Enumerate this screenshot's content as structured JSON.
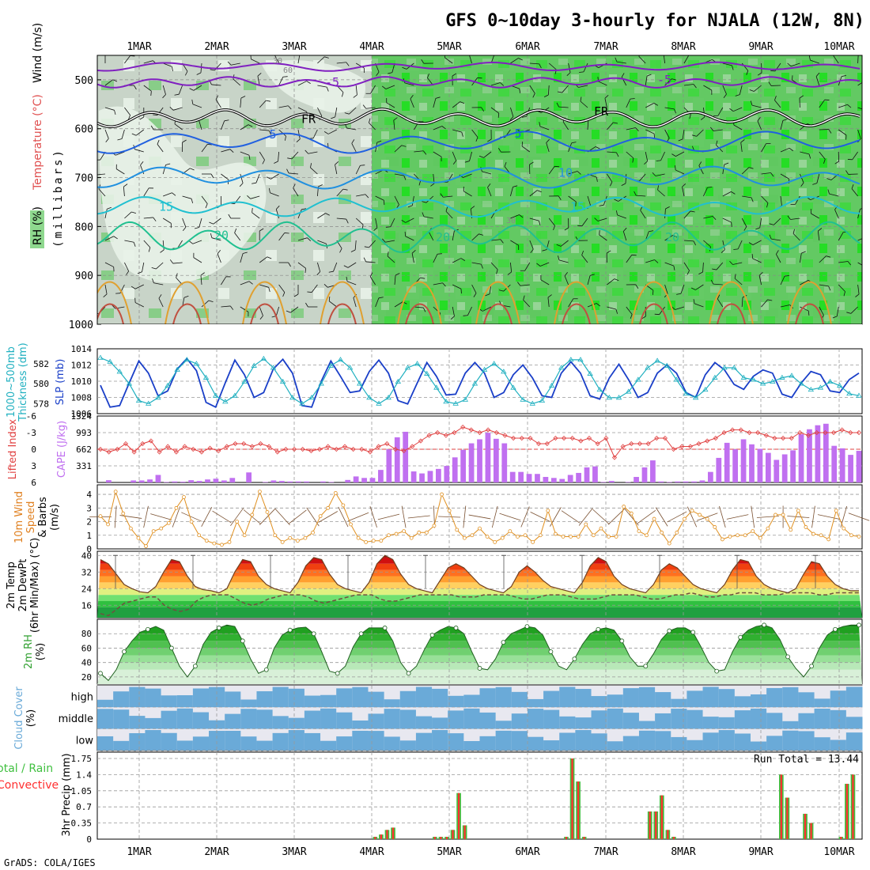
{
  "header": {
    "title": "GFS 0~10day 3-hourly for NJALA (12W, 8N)",
    "footer": "GrADS: COLA/IGES"
  },
  "colors": {
    "rh_green": "#5ec85e",
    "rh_bright": "#00e600",
    "rh_gray": "#c8d4c8",
    "temp_purple": "#8020c0",
    "temp_blue": "#2060e0",
    "slp_blue": "#1a3fc8",
    "thick_cyan": "#20b0c0",
    "lifted_red": "#e04040",
    "cape_purple": "#c070f0",
    "wind_orange": "#e09020",
    "rain_green": "#40c040",
    "rain_red": "#ff3030",
    "cloud_blue": "#6aaad8"
  },
  "chart_data": [
    {
      "type": "heatmap",
      "panel": "upper-air",
      "ylabel": "(millibars)",
      "legend_labels": [
        "RH (%)",
        "Temperature (°C)",
        "Wind (m/s)"
      ],
      "dates": [
        "1MAR",
        "2MAR",
        "3MAR",
        "4MAR",
        "5MAR",
        "6MAR",
        "7MAR",
        "8MAR",
        "9MAR",
        "10MAR"
      ],
      "pressure_ticks": [
        500,
        600,
        700,
        800,
        900,
        1000
      ],
      "ylim": [
        1000,
        450
      ],
      "isotherm_labels": [
        {
          "text": "-5",
          "level": 505
        },
        {
          "text": "-5",
          "level": 500
        },
        {
          "text": "FR",
          "level": 580
        },
        {
          "text": "FR",
          "level": 565
        },
        {
          "text": "5",
          "level": 612
        },
        {
          "text": "5",
          "level": 610
        },
        {
          "text": "10",
          "level": 690
        },
        {
          "text": "15",
          "level": 760
        },
        {
          "text": "15",
          "level": 760
        },
        {
          "text": "20",
          "level": 818
        },
        {
          "text": "20",
          "level": 822
        },
        {
          "text": "20",
          "level": 822
        }
      ],
      "rh_contour_labels": [
        "30",
        "60",
        "30"
      ]
    },
    {
      "type": "line",
      "panel": "slp-thickness",
      "ylabel_left": "Thickness (dm)",
      "ylabel_left2": "1000~500mb",
      "ylabel_right": "SLP (mb)",
      "left_ticks": [
        578,
        580,
        582
      ],
      "right_ticks": [
        1006,
        1008,
        1010,
        1012,
        1014
      ],
      "ylim_slp": [
        1006,
        1014
      ],
      "ylim_thickness": [
        577,
        583.5
      ],
      "series": [
        {
          "name": "SLP (mb)",
          "values": [
            1009.5,
            1006.8,
            1007.0,
            1009.8,
            1012.5,
            1011.0,
            1008.2,
            1008.8,
            1011.5,
            1012.8,
            1011.3,
            1007.4,
            1006.8,
            1009.8,
            1012.6,
            1010.8,
            1008.0,
            1008.6,
            1011.5,
            1012.7,
            1011.0,
            1007.0,
            1006.8,
            1010.0,
            1012.5,
            1010.6,
            1008.6,
            1008.8,
            1011.2,
            1012.6,
            1011.0,
            1007.6,
            1007.2,
            1009.8,
            1012.3,
            1010.6,
            1008.3,
            1008.4,
            1011.0,
            1012.3,
            1011.0,
            1008.0,
            1008.6,
            1010.8,
            1012.0,
            1010.4,
            1008.2,
            1008.0,
            1011.0,
            1012.4,
            1011.0,
            1008.2,
            1007.8,
            1010.4,
            1012.1,
            1010.2,
            1008.0,
            1008.6,
            1011.0,
            1012.0,
            1011.0,
            1008.6,
            1008.0,
            1010.8,
            1012.3,
            1011.4,
            1009.6,
            1009.0,
            1010.6,
            1011.4,
            1011.0,
            1008.4,
            1008.0,
            1009.8,
            1011.2,
            1010.8,
            1008.8,
            1008.6,
            1010.2,
            1011.0
          ]
        },
        {
          "name": "Thickness (dm)",
          "values": [
            582.6,
            582.2,
            581.2,
            580.0,
            578.3,
            578.0,
            578.6,
            579.8,
            581.4,
            582.4,
            582.0,
            580.6,
            578.8,
            578.2,
            578.8,
            580.2,
            581.8,
            582.5,
            581.6,
            580.2,
            578.6,
            578.0,
            578.6,
            580.0,
            581.8,
            582.4,
            581.6,
            580.0,
            578.6,
            578.0,
            578.6,
            580.2,
            581.6,
            582.0,
            581.0,
            579.6,
            578.2,
            578.0,
            578.4,
            580.0,
            581.4,
            582.0,
            581.2,
            579.6,
            578.4,
            578.0,
            578.3,
            579.8,
            581.6,
            582.4,
            582.4,
            581.0,
            579.4,
            578.6,
            578.6,
            579.2,
            580.4,
            581.6,
            582.3,
            581.8,
            580.4,
            579.0,
            578.6,
            579.4,
            580.6,
            581.6,
            581.6,
            580.6,
            580.4,
            580.0,
            580.2,
            580.6,
            580.8,
            580.0,
            579.4,
            579.6,
            580.2,
            579.8,
            579.0,
            578.8
          ]
        }
      ]
    },
    {
      "type": "bar",
      "panel": "lifted-cape",
      "ylabel_left": "Lifted Index",
      "ylabel_right": "CAPE (J/kg)",
      "left_ticks": [
        -6,
        -3,
        0,
        3,
        6
      ],
      "right_ticks": [
        331,
        662,
        993,
        1324
      ],
      "ylim_cape": [
        0,
        1324
      ],
      "ylim_li": [
        6,
        -6
      ],
      "series": [
        {
          "name": "CAPE (J/kg)",
          "values": [
            0,
            45,
            0,
            0,
            40,
            40,
            60,
            150,
            10,
            20,
            15,
            45,
            30,
            60,
            75,
            40,
            90,
            0,
            200,
            0,
            10,
            40,
            30,
            20,
            20,
            20,
            0,
            20,
            10,
            0,
            50,
            120,
            90,
            90,
            250,
            660,
            900,
            1010,
            220,
            180,
            230,
            270,
            330,
            500,
            650,
            780,
            860,
            990,
            870,
            780,
            210,
            210,
            170,
            170,
            110,
            90,
            70,
            150,
            190,
            300,
            320,
            10,
            30,
            0,
            10,
            110,
            300,
            440,
            20,
            10,
            20,
            20,
            20,
            40,
            210,
            490,
            790,
            660,
            860,
            760,
            670,
            590,
            450,
            560,
            640,
            960,
            1060,
            1140,
            1170,
            730,
            680,
            550,
            630
          ]
        },
        {
          "name": "Lifted Index",
          "values": [
            0,
            0.5,
            0,
            -1,
            0.5,
            -1,
            -1.5,
            0.5,
            -0.5,
            0.5,
            -0.5,
            0,
            0.5,
            -0.2,
            0.3,
            -0.5,
            -1,
            -1,
            -0.5,
            -1,
            -0.5,
            0.5,
            0,
            0,
            0,
            0.3,
            0,
            -0.5,
            0,
            -0.5,
            0,
            0,
            0.5,
            -0.5,
            -1,
            0,
            0.3,
            -0.5,
            -1.5,
            -2.5,
            -3,
            -2.5,
            -3,
            -4,
            -3.5,
            -3,
            -3.5,
            -3,
            -2.5,
            -2,
            -2,
            -2,
            -1,
            -1,
            -2,
            -2,
            -2,
            -1.5,
            -2,
            -1,
            -2,
            1.5,
            -0.5,
            -1,
            -1,
            -1,
            -2,
            -2,
            0,
            -0.5,
            -0.5,
            -1,
            -1.5,
            -2,
            -3,
            -3.5,
            -3.5,
            -3,
            -3,
            -2.5,
            -2,
            -2,
            -2,
            -3,
            -2.5,
            -3,
            -3,
            -3,
            -3.5,
            -3,
            -3
          ]
        }
      ]
    },
    {
      "type": "line",
      "panel": "wind",
      "ylabel_lines": [
        "10m Wind",
        "Speed",
        "& Barbs",
        "(m/s)"
      ],
      "y_ticks": [
        0,
        1,
        2,
        3,
        4
      ],
      "ylim": [
        0,
        4.7
      ],
      "series": [
        {
          "name": "Speed",
          "values": [
            2.4,
            1.8,
            4.2,
            2.6,
            1.5,
            0.8,
            0.2,
            1.3,
            1.5,
            1.9,
            3.0,
            3.8,
            2.0,
            1.0,
            0.6,
            0.4,
            0.3,
            0.5,
            2.0,
            1.0,
            2.5,
            4.2,
            2.7,
            1.0,
            0.5,
            0.8,
            0.6,
            0.8,
            1.2,
            2.4,
            3.0,
            4.1,
            3.2,
            1.8,
            0.8,
            0.5,
            0.6,
            0.6,
            1.0,
            1.1,
            1.3,
            0.8,
            1.2,
            1.2,
            1.7,
            4.0,
            2.8,
            1.4,
            0.8,
            1.0,
            1.5,
            0.9,
            0.5,
            0.8,
            1.3,
            0.9,
            1.0,
            0.5,
            1.0,
            2.8,
            1.1,
            0.9,
            0.9,
            0.9,
            1.8,
            1.0,
            1.5,
            0.9,
            0.9,
            3.1,
            2.6,
            1.3,
            1.0,
            2.2,
            1.2,
            0.4,
            1.2,
            2.2,
            2.8,
            2.5,
            2.2,
            1.6,
            0.7,
            0.9,
            1.0,
            1.0,
            1.3,
            0.8,
            1.5,
            2.5,
            2.5,
            1.4,
            2.8,
            1.6,
            1.1,
            1.0,
            0.7,
            2.8,
            1.5,
            1.0,
            0.9
          ]
        }
      ]
    },
    {
      "type": "area",
      "panel": "temperature",
      "ylabel_lines": [
        "2m Temp",
        "2m DewPt",
        "(6hr Min/Max) (°C)"
      ],
      "y_ticks": [
        16,
        24,
        32,
        40
      ],
      "ylim": [
        10,
        42
      ],
      "series": [
        {
          "name": "2m Temp",
          "values": [
            38,
            36,
            31,
            26,
            24,
            22.5,
            22,
            25,
            32,
            38,
            37,
            30,
            25,
            23.5,
            23,
            22,
            24,
            32,
            38,
            37,
            30,
            26,
            24,
            23,
            22,
            27,
            35,
            39,
            38,
            31,
            26,
            24,
            23,
            22,
            27,
            36,
            40,
            38,
            31,
            26,
            24,
            23,
            22,
            28,
            34,
            36,
            34,
            30,
            26,
            24,
            23,
            22,
            25,
            32,
            35,
            32,
            28,
            25,
            24,
            23,
            22,
            27,
            35,
            39,
            37,
            30,
            26,
            24,
            23,
            22,
            26,
            33,
            36,
            34,
            30,
            26,
            24,
            23,
            22,
            26,
            33,
            38,
            37,
            30,
            26,
            24,
            23,
            22,
            24,
            31,
            37,
            36,
            30,
            26,
            24,
            23,
            23
          ]
        },
        {
          "name": "2m DewPt",
          "values": [
            12,
            11,
            14,
            17,
            18,
            19,
            20,
            20,
            16,
            14,
            13,
            14,
            18,
            20,
            21,
            21,
            21,
            19,
            17,
            16,
            17,
            19,
            20,
            21,
            21,
            21,
            20,
            18,
            17,
            18,
            19,
            20,
            21,
            21,
            21,
            19,
            18,
            18,
            19,
            20,
            21,
            21,
            21,
            21,
            21,
            20,
            20,
            20,
            21,
            21,
            21,
            21,
            20,
            19,
            19,
            20,
            21,
            21,
            21,
            20,
            19,
            19,
            19,
            20,
            21,
            21,
            21,
            21,
            20,
            19,
            19,
            20,
            21,
            21,
            22,
            21,
            20,
            20,
            21,
            21,
            22,
            22,
            22,
            21,
            21,
            21,
            22,
            22,
            22,
            22,
            21,
            21,
            22,
            22,
            22,
            22
          ]
        }
      ]
    },
    {
      "type": "area",
      "panel": "rh",
      "ylabel_lines": [
        "2m RH",
        "(%)"
      ],
      "y_ticks": [
        20,
        40,
        60,
        80
      ],
      "ylim": [
        10,
        100
      ],
      "series": [
        {
          "name": "2m RH",
          "values": [
            25,
            15,
            30,
            55,
            70,
            82,
            86,
            90,
            85,
            60,
            35,
            20,
            35,
            65,
            82,
            88,
            92,
            90,
            70,
            45,
            25,
            30,
            60,
            78,
            85,
            88,
            89,
            80,
            55,
            28,
            25,
            35,
            62,
            80,
            88,
            88,
            88,
            70,
            40,
            25,
            35,
            58,
            78,
            85,
            90,
            88,
            80,
            55,
            32,
            30,
            45,
            68,
            80,
            85,
            90,
            88,
            78,
            55,
            35,
            30,
            45,
            65,
            80,
            86,
            88,
            85,
            70,
            48,
            35,
            35,
            52,
            72,
            84,
            88,
            88,
            82,
            62,
            40,
            28,
            30,
            55,
            75,
            85,
            90,
            92,
            88,
            72,
            48,
            32,
            20,
            35,
            60,
            78,
            86,
            90,
            92,
            92
          ]
        }
      ]
    },
    {
      "type": "area",
      "panel": "cloud",
      "ylabel_lines": [
        "Cloud Cover",
        "(%)"
      ],
      "levels": [
        "high",
        "middle",
        "low"
      ]
    },
    {
      "type": "bar",
      "panel": "precip",
      "ylabel_lines": [
        "Total / Rain",
        "Convective",
        "3hr Precip (mm)"
      ],
      "y_ticks": [
        0,
        0.35,
        0.7,
        1.05,
        1.4,
        1.75
      ],
      "y_tick_labels": [
        "0",
        "0.35",
        "0.7",
        "1.05",
        "1.4",
        "1.75"
      ],
      "ylim": [
        0,
        1.75
      ],
      "run_total_label": "Run Total = 13.44",
      "series": [
        {
          "name": "Total",
          "values": [
            0,
            0,
            0,
            0,
            0,
            0,
            0,
            0,
            0,
            0,
            0,
            0,
            0,
            0,
            0,
            0,
            0,
            0,
            0,
            0,
            0,
            0,
            0,
            0,
            0,
            0,
            0,
            0,
            0,
            0,
            0,
            0,
            0,
            0,
            0,
            0,
            0,
            0,
            0,
            0,
            0,
            0,
            0,
            0,
            0,
            0,
            0.05,
            0.1,
            0.2,
            0.25,
            0,
            0,
            0,
            0,
            0,
            0,
            0.05,
            0.05,
            0.05,
            0.2,
            1.0,
            0.3,
            0,
            0,
            0,
            0,
            0,
            0,
            0,
            0,
            0,
            0,
            0,
            0,
            0,
            0,
            0,
            0,
            0.05,
            1.75,
            1.25,
            0.05,
            0,
            0,
            0,
            0,
            0,
            0,
            0,
            0,
            0,
            0,
            0.6,
            0.6,
            0.95,
            0.2,
            0.05,
            0,
            0,
            0,
            0,
            0,
            0,
            0,
            0,
            0,
            0,
            0,
            0,
            0,
            0,
            0,
            0,
            0,
            1.4,
            0.9,
            0,
            0,
            0.55,
            0.35,
            0,
            0,
            0,
            0,
            0.05,
            1.2,
            1.4,
            0
          ]
        }
      ]
    }
  ]
}
